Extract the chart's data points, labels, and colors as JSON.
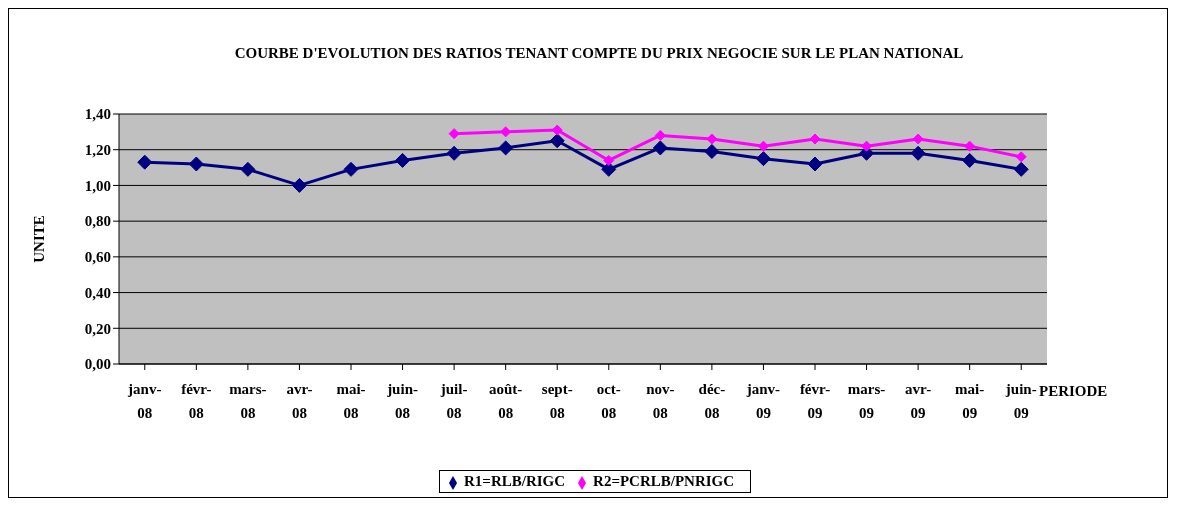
{
  "chart_data": {
    "type": "line",
    "title": "COURBE D'EVOLUTION DES RATIOS TENANT COMPTE DU PRIX NEGOCIE SUR LE PLAN NATIONAL",
    "xlabel": "PERIODE",
    "ylabel": "UNITE",
    "categories": [
      "janv-08",
      "févr-08",
      "mars-08",
      "avr-08",
      "mai-08",
      "juin-08",
      "juil-08",
      "août-08",
      "sept-08",
      "oct-08",
      "nov-08",
      "déc-08",
      "janv-09",
      "févr-09",
      "mars-09",
      "avr-09",
      "mai-09",
      "juin-09"
    ],
    "series": [
      {
        "name": "R1=RLB/RIGC",
        "color": "#000080",
        "values": [
          1.13,
          1.12,
          1.09,
          1.0,
          1.09,
          1.14,
          1.18,
          1.21,
          1.25,
          1.09,
          1.21,
          1.19,
          1.15,
          1.12,
          1.18,
          1.18,
          1.14,
          1.09
        ]
      },
      {
        "name": "R2=PCRLB/PNRIGC",
        "color": "#ff00ff",
        "values": [
          null,
          null,
          null,
          null,
          null,
          null,
          1.29,
          1.3,
          1.31,
          1.14,
          1.28,
          1.26,
          1.22,
          1.26,
          1.22,
          1.26,
          1.22,
          1.16
        ]
      }
    ],
    "ylim": [
      0,
      1.4
    ],
    "yticks": [
      {
        "value": 0,
        "label": "0,00"
      },
      {
        "value": 0.2,
        "label": "0,20"
      },
      {
        "value": 0.4,
        "label": "0,40"
      },
      {
        "value": 0.6,
        "label": "0,60"
      },
      {
        "value": 0.8,
        "label": "0,80"
      },
      {
        "value": 1.0,
        "label": "1,00"
      },
      {
        "value": 1.2,
        "label": "1,20"
      },
      {
        "value": 1.4,
        "label": "1,40"
      }
    ],
    "grid": "y",
    "legend": "bottom",
    "marker": "diamond",
    "line_style": "solid"
  }
}
